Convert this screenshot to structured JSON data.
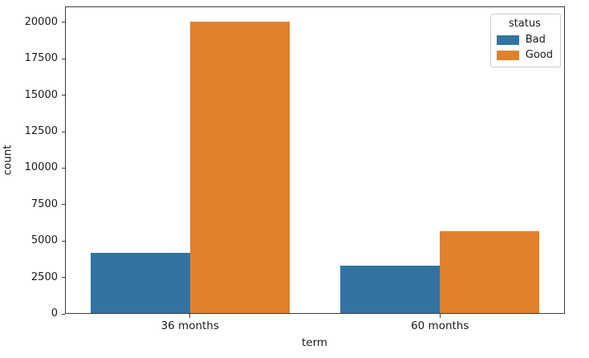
{
  "figure": {
    "background": "#ffffff",
    "spine_color": "#3c3c3c"
  },
  "chart_data": {
    "type": "bar",
    "title": "",
    "xlabel": "term",
    "ylabel": "count",
    "categories": [
      "36 months",
      "60 months"
    ],
    "series": [
      {
        "name": "Bad",
        "color": "#3274a1",
        "values": [
          4150,
          3280
        ]
      },
      {
        "name": "Good",
        "color": "#e1812c",
        "values": [
          20100,
          5630
        ]
      }
    ],
    "legend": {
      "title": "status",
      "position": "upper-right"
    },
    "ylim": [
      0,
      21100
    ],
    "yticks": [
      0,
      2500,
      5000,
      7500,
      10000,
      12500,
      15000,
      17500,
      20000
    ],
    "grid": false,
    "group_total_width": 0.8
  }
}
